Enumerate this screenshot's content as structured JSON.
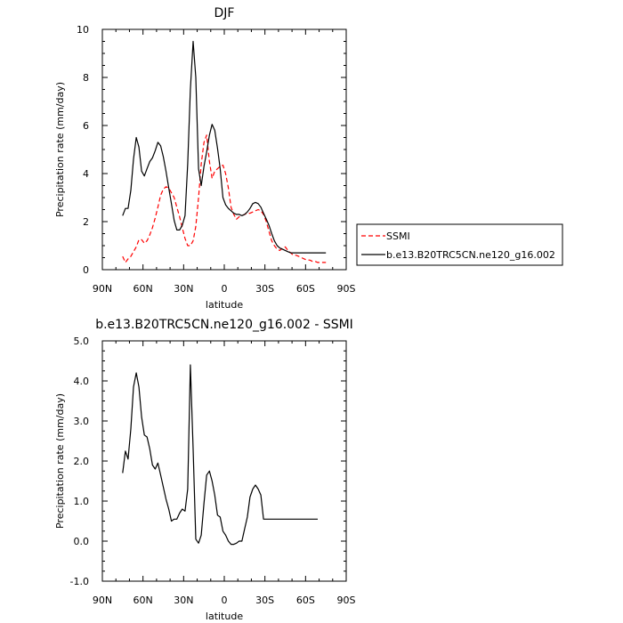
{
  "chart_data": [
    {
      "type": "line",
      "title": "DJF",
      "xlabel": "latitude",
      "ylabel": "Precipitation rate (mm/day)",
      "xlim": [
        90,
        -90
      ],
      "ylim": [
        0,
        10
      ],
      "xticks": [
        90,
        60,
        30,
        0,
        -30,
        -60,
        -90
      ],
      "xtick_labels": [
        "90N",
        "60N",
        "30N",
        "0",
        "30S",
        "60S",
        "90S"
      ],
      "yticks": [
        0,
        2,
        4,
        6,
        8,
        10
      ],
      "ytick_labels": [
        "0",
        "2",
        "4",
        "6",
        "8",
        "10"
      ],
      "legend_position": "right, outside plot",
      "series": [
        {
          "name": "SSMI",
          "color": "#ff0000",
          "dash": "dashed",
          "x": [
            75,
            73,
            71,
            69,
            67,
            65,
            63,
            61,
            59,
            57,
            55,
            53,
            51,
            49,
            47,
            45,
            43,
            41,
            39,
            37,
            35,
            33,
            31,
            29,
            27,
            25,
            23,
            21,
            19,
            17,
            15,
            13,
            11,
            9,
            7,
            5,
            3,
            1,
            -1,
            -3,
            -5,
            -7,
            -9,
            -11,
            -13,
            -15,
            -17,
            -19,
            -21,
            -23,
            -25,
            -27,
            -29,
            -31,
            -33,
            -35,
            -37,
            -39,
            -41,
            -43,
            -45,
            -47,
            -49,
            -51,
            -53,
            -55,
            -57,
            -59,
            -61,
            -63,
            -65,
            -67,
            -69,
            -71,
            -73,
            -75
          ],
          "values": [
            0.55,
            0.3,
            0.45,
            0.55,
            0.75,
            0.95,
            1.25,
            1.25,
            1.1,
            1.2,
            1.45,
            1.75,
            2.15,
            2.6,
            3.1,
            3.35,
            3.45,
            3.4,
            3.2,
            3.0,
            2.6,
            2.2,
            1.75,
            1.3,
            1.0,
            1.0,
            1.2,
            1.8,
            3.0,
            4.4,
            5.3,
            5.6,
            4.5,
            3.8,
            4.1,
            4.2,
            4.3,
            4.35,
            4.0,
            3.4,
            2.6,
            2.3,
            2.1,
            2.2,
            2.25,
            2.3,
            2.35,
            2.35,
            2.4,
            2.45,
            2.5,
            2.45,
            2.3,
            2.0,
            1.6,
            1.2,
            1.0,
            0.85,
            0.8,
            0.9,
            0.95,
            0.8,
            0.7,
            0.6,
            0.6,
            0.55,
            0.5,
            0.45,
            0.4,
            0.4,
            0.35,
            0.35,
            0.3,
            0.3,
            0.3,
            0.3
          ]
        },
        {
          "name": "b.e13.B20TRC5CN.ne120_g16.002",
          "color": "#000000",
          "dash": "solid",
          "x": [
            75,
            73,
            71,
            69,
            67,
            65,
            63,
            61,
            59,
            57,
            55,
            53,
            51,
            49,
            47,
            45,
            43,
            41,
            39,
            37,
            35,
            33,
            31,
            29,
            27,
            25,
            23,
            21,
            19,
            17,
            15,
            13,
            11,
            9,
            7,
            5,
            3,
            1,
            -1,
            -3,
            -5,
            -7,
            -9,
            -11,
            -13,
            -15,
            -17,
            -19,
            -21,
            -23,
            -25,
            -27,
            -29,
            -31,
            -33,
            -35,
            -37,
            -39,
            -41,
            -43,
            -45,
            -47,
            -49,
            -51,
            -53,
            -55,
            -57,
            -59,
            -61,
            -63,
            -65,
            -67,
            -69,
            -71,
            -73,
            -75
          ],
          "values": [
            2.25,
            2.55,
            2.55,
            3.3,
            4.6,
            5.5,
            5.1,
            4.1,
            3.9,
            4.2,
            4.5,
            4.65,
            4.95,
            5.3,
            5.15,
            4.7,
            4.1,
            3.4,
            2.75,
            2.05,
            1.65,
            1.65,
            1.85,
            2.25,
            4.4,
            7.5,
            9.5,
            8.0,
            4.2,
            3.5,
            4.3,
            4.9,
            5.6,
            6.05,
            5.8,
            5.05,
            4.2,
            3.0,
            2.7,
            2.55,
            2.45,
            2.35,
            2.3,
            2.3,
            2.25,
            2.3,
            2.4,
            2.55,
            2.75,
            2.8,
            2.75,
            2.6,
            2.35,
            2.1,
            1.85,
            1.5,
            1.2,
            1.0,
            0.9,
            0.85,
            0.8,
            0.75,
            0.7,
            0.7,
            0.7,
            0.7,
            0.7,
            0.7,
            0.7,
            0.7,
            0.7,
            0.7,
            0.7,
            0.7,
            0.7,
            0.7
          ]
        }
      ]
    },
    {
      "type": "line",
      "title": "b.e13.B20TRC5CN.ne120_g16.002 - SSMI",
      "xlabel": "latitude",
      "ylabel": "Precipitation rate (mm/day)",
      "xlim": [
        90,
        -90
      ],
      "ylim": [
        -1.0,
        5.0
      ],
      "xticks": [
        90,
        60,
        30,
        0,
        -30,
        -60,
        -90
      ],
      "xtick_labels": [
        "90N",
        "60N",
        "30N",
        "0",
        "30S",
        "60S",
        "90S"
      ],
      "yticks": [
        -1,
        0,
        1,
        2,
        3,
        4,
        5
      ],
      "ytick_labels": [
        "-1.0",
        "0.0",
        "1.0",
        "2.0",
        "3.0",
        "4.0",
        "5.0"
      ],
      "series": [
        {
          "color": "#000000",
          "dash": "solid",
          "x": [
            75,
            73,
            71,
            69,
            67,
            65,
            63,
            61,
            59,
            57,
            55,
            53,
            51,
            49,
            47,
            45,
            43,
            41,
            39,
            37,
            35,
            33,
            31,
            29,
            27,
            25,
            23,
            21,
            19,
            17,
            15,
            13,
            11,
            9,
            7,
            5,
            3,
            1,
            -1,
            -3,
            -5,
            -7,
            -9,
            -11,
            -13,
            -15,
            -17,
            -19,
            -21,
            -23,
            -25,
            -27,
            -29,
            -31,
            -33,
            -35,
            -37,
            -39,
            -41,
            -43,
            -45,
            -47,
            -49,
            -51,
            -53,
            -55,
            -57,
            -59,
            -61,
            -63,
            -65,
            -67,
            -69
          ],
          "values": [
            1.7,
            2.25,
            2.05,
            2.8,
            3.85,
            4.2,
            3.85,
            3.1,
            2.65,
            2.6,
            2.3,
            1.9,
            1.8,
            1.95,
            1.65,
            1.35,
            1.05,
            0.8,
            0.5,
            0.55,
            0.55,
            0.7,
            0.8,
            0.75,
            1.3,
            4.4,
            2.3,
            0.05,
            -0.05,
            0.15,
            0.95,
            1.65,
            1.75,
            1.5,
            1.15,
            0.65,
            0.6,
            0.25,
            0.15,
            0.0,
            -0.08,
            -0.08,
            -0.05,
            0.0,
            0.0,
            0.3,
            0.6,
            1.1,
            1.3,
            1.4,
            1.3,
            1.15,
            0.55,
            0.55,
            0.55,
            0.55,
            0.55,
            0.55,
            0.55,
            0.55,
            0.55,
            0.55,
            0.55,
            0.55,
            0.55,
            0.55,
            0.55,
            0.55,
            0.55,
            0.55,
            0.55,
            0.55,
            0.55
          ]
        }
      ]
    }
  ]
}
